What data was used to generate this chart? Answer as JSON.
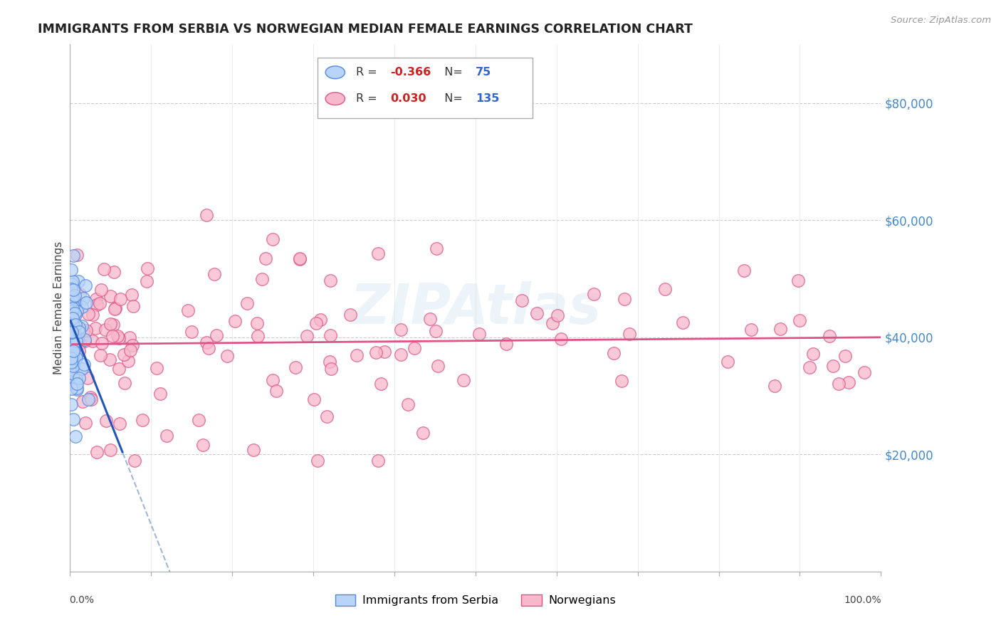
{
  "title": "IMMIGRANTS FROM SERBIA VS NORWEGIAN MEDIAN FEMALE EARNINGS CORRELATION CHART",
  "source": "Source: ZipAtlas.com",
  "ylabel": "Median Female Earnings",
  "ytick_labels": [
    "$20,000",
    "$40,000",
    "$60,000",
    "$80,000"
  ],
  "ytick_values": [
    20000,
    40000,
    60000,
    80000
  ],
  "ylim": [
    0,
    90000
  ],
  "xlim": [
    0,
    1.0
  ],
  "serbia_R": -0.366,
  "serbia_N": 75,
  "norwegian_R": 0.03,
  "norwegian_N": 135,
  "serbia_color": "#b8d4f8",
  "serbia_edge_color": "#5588dd",
  "norwegian_color": "#f8b8cc",
  "norwegian_edge_color": "#dd5588",
  "trend_serbia_solid_color": "#2255bb",
  "trend_serbia_dash_color": "#7799cc",
  "trend_norwegian_color": "#dd5588",
  "watermark": "ZIPAtlas"
}
